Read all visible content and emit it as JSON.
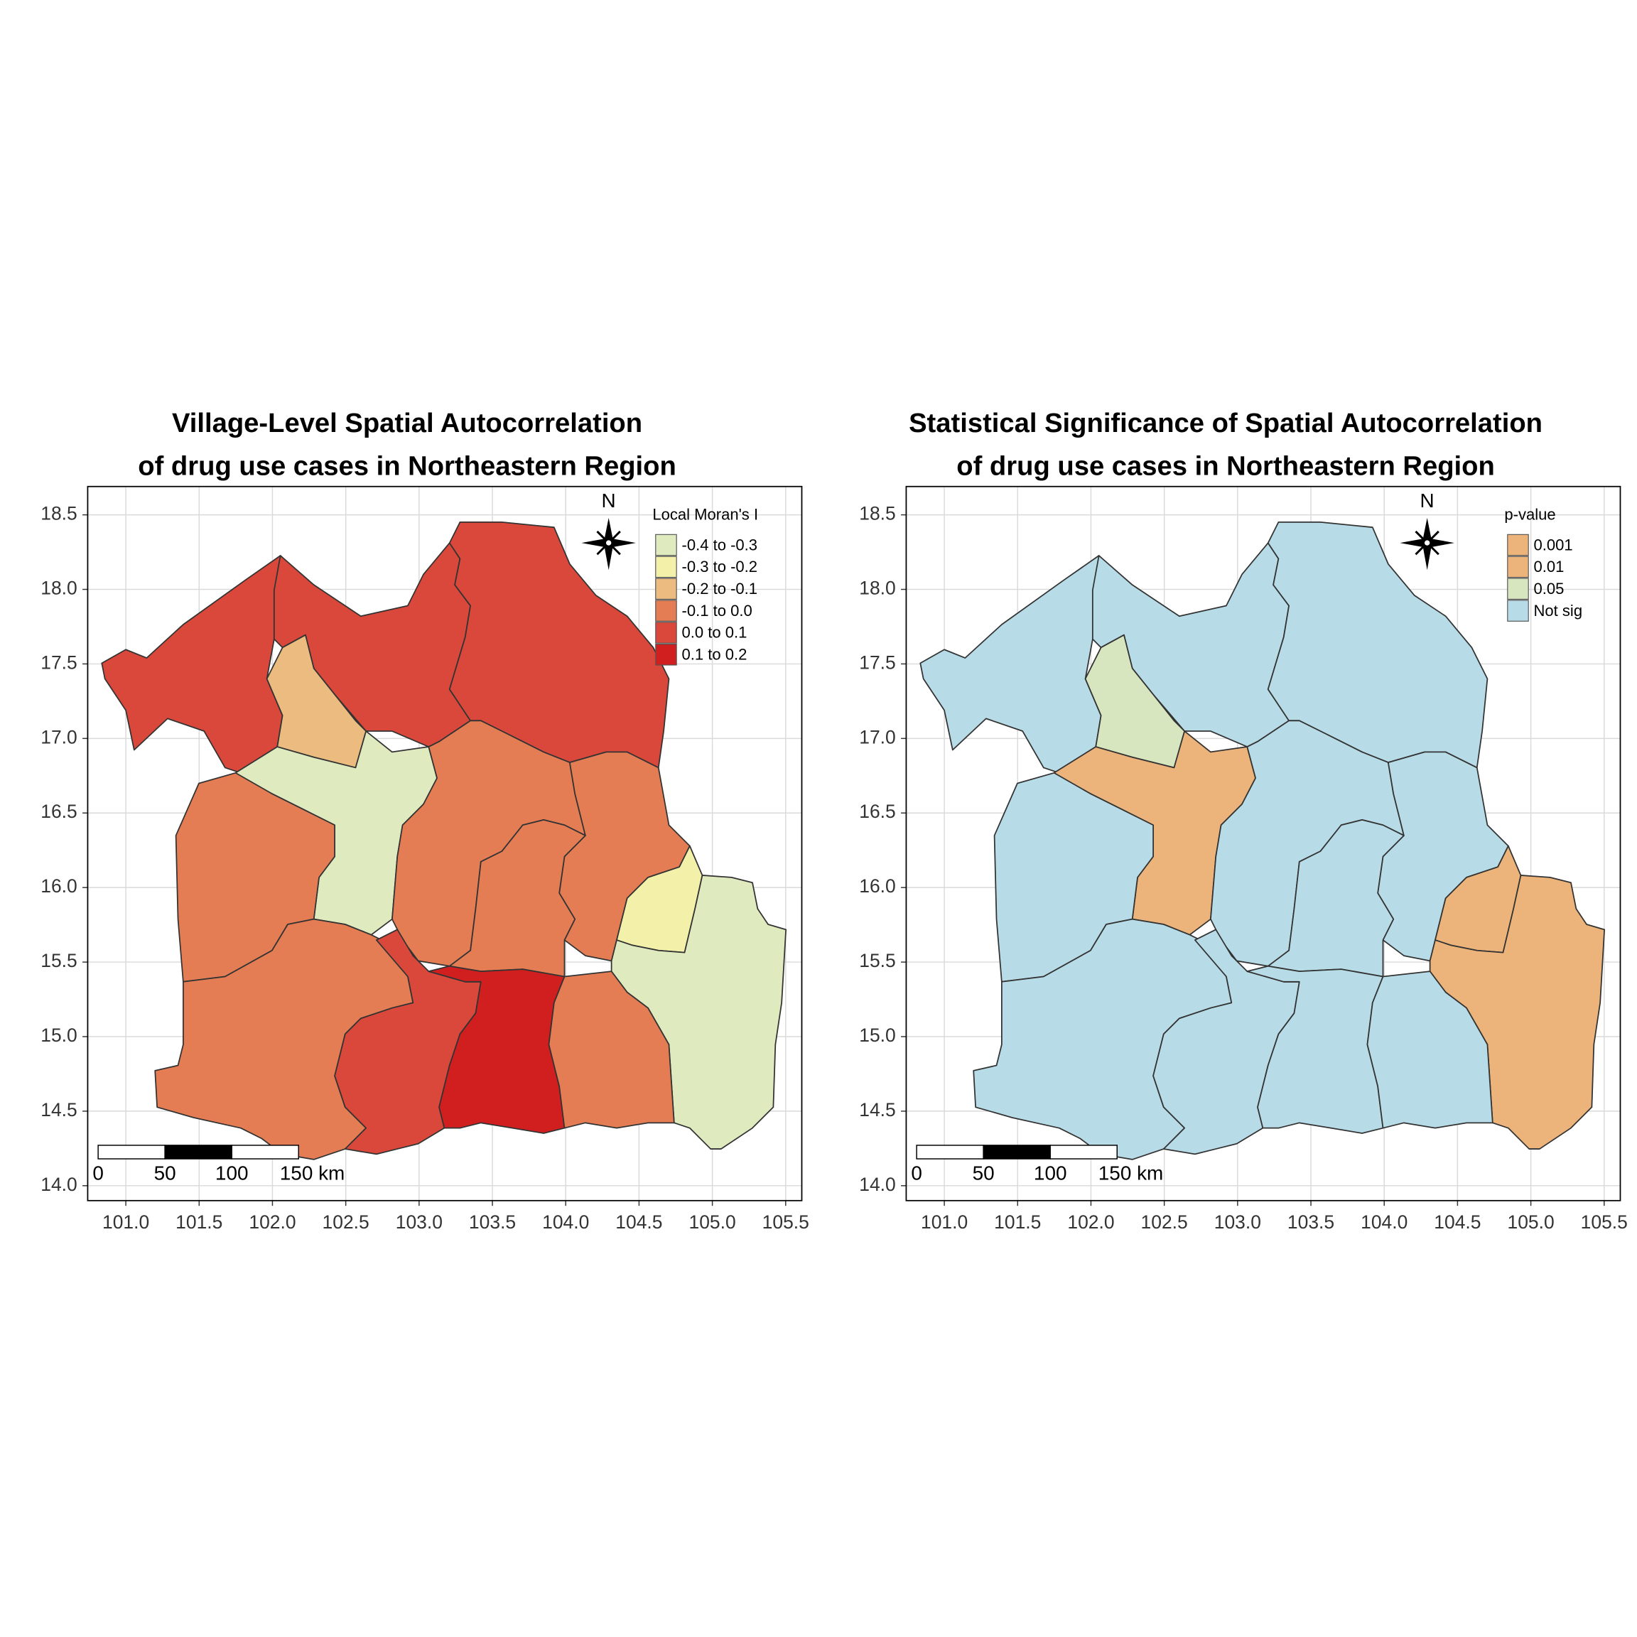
{
  "panels": [
    {
      "title": [
        "Village-Level Spatial Autocorrelation",
        "of drug use cases in Northeastern Region"
      ],
      "legend_title": "Local Moran's I",
      "legend": [
        {
          "label": "-0.4 to -0.3",
          "color": "#dfeabf"
        },
        {
          "label": "-0.3 to -0.2",
          "color": "#f3f1a9"
        },
        {
          "label": "-0.2 to -0.1",
          "color": "#ecbb7f"
        },
        {
          "label": "-0.1 to 0.0",
          "color": "#e47d54"
        },
        {
          "label": "0.0 to 0.1",
          "color": "#d9483a"
        },
        {
          "label": "0.1 to 0.2",
          "color": "#d11f1f"
        }
      ],
      "north": "N",
      "scale_labels": [
        "0",
        "50",
        "100",
        "150 km"
      ],
      "xlim": [
        100.74,
        105.61
      ],
      "ylim": [
        13.9,
        18.69
      ],
      "xticks": [
        {
          "value": 101,
          "label": "101.0"
        },
        101.5,
        {
          "value": 102,
          "label": "102.0"
        },
        102.5,
        {
          "value": 103,
          "label": "103.0"
        },
        103.5,
        {
          "value": 104,
          "label": "104.0"
        },
        104.5,
        {
          "value": 105,
          "label": "105.0"
        },
        105.5
      ],
      "yticks": [
        {
          "value": 14,
          "label": "14.0"
        },
        14.5,
        {
          "value": 15,
          "label": "15.0"
        },
        15.5,
        {
          "value": 16,
          "label": "16.0"
        },
        16.5,
        {
          "value": 17,
          "label": "17.0"
        },
        17.5,
        {
          "value": 18,
          "label": "18.0"
        },
        18.5
      ]
    },
    {
      "title": [
        "Statistical Significance of Spatial Autocorrelation",
        "of drug use cases in Northeastern Region"
      ],
      "legend_title": "p-value",
      "legend": [
        {
          "label": "0.001",
          "color": "#ecb47a"
        },
        {
          "label": "0.01",
          "color": "#ecb47a"
        },
        {
          "label": "0.05",
          "color": "#d8e6c0"
        },
        {
          "label": "Not sig",
          "color": "#b7dce8"
        }
      ],
      "north": "N",
      "scale_labels": [
        "0",
        "50",
        "100",
        "150 km"
      ],
      "xlim": [
        100.74,
        105.61
      ],
      "ylim": [
        13.9,
        18.69
      ],
      "xticks": [
        {
          "value": 101,
          "label": "101.0"
        },
        101.5,
        {
          "value": 102,
          "label": "102.0"
        },
        102.5,
        {
          "value": 103,
          "label": "103.0"
        },
        103.5,
        {
          "value": 104,
          "label": "104.0"
        },
        104.5,
        {
          "value": 105,
          "label": "105.0"
        },
        105.5
      ],
      "yticks": [
        {
          "value": 14,
          "label": "14.0"
        },
        14.5,
        {
          "value": 15,
          "label": "15.0"
        },
        15.5,
        {
          "value": 16,
          "label": "16.0"
        },
        16.5,
        {
          "value": 17,
          "label": "17.0"
        },
        17.5,
        {
          "value": 18,
          "label": "18.0"
        },
        18.5
      ]
    }
  ]
}
